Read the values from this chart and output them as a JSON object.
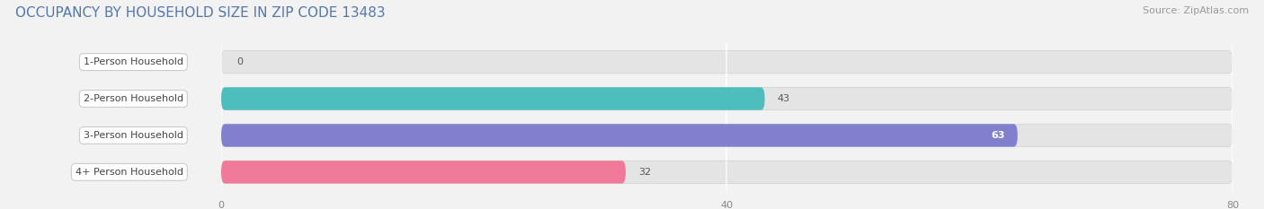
{
  "title": "OCCUPANCY BY HOUSEHOLD SIZE IN ZIP CODE 13483",
  "source": "Source: ZipAtlas.com",
  "categories": [
    "1-Person Household",
    "2-Person Household",
    "3-Person Household",
    "4+ Person Household"
  ],
  "values": [
    0,
    43,
    63,
    32
  ],
  "bar_colors": [
    "#c9a8d4",
    "#4dbdbd",
    "#8080cc",
    "#f07898"
  ],
  "xlim_data": [
    0,
    80
  ],
  "xticks": [
    0,
    40,
    80
  ],
  "background_color": "#f2f2f2",
  "bar_bg_color": "#e4e4e4",
  "bar_bg_border": "#d0d0d0",
  "label_box_color": "#ffffff",
  "title_color": "#5577aa",
  "title_fontsize": 11,
  "source_fontsize": 8,
  "label_fontsize": 8,
  "value_fontsize": 8,
  "bar_height": 0.62,
  "figsize": [
    14.06,
    2.33
  ],
  "dpi": 100
}
